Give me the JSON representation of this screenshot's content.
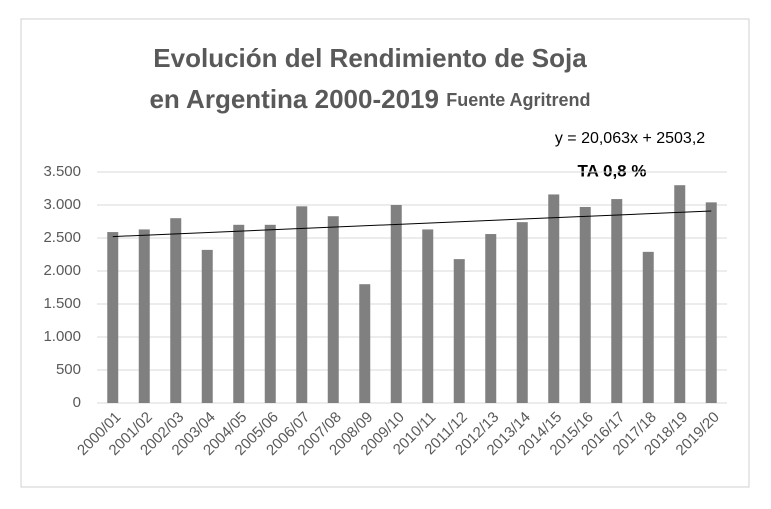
{
  "chart_data": {
    "type": "bar",
    "title": "Evolución del Rendimiento de Soja",
    "subtitle": "en Argentina 2000-2019",
    "source": "Fuente Agritrend",
    "annotations": [
      "y = 20,063x + 2503,2",
      "TA 0,8 %"
    ],
    "categories": [
      "2000/01",
      "2001/02",
      "2002/03",
      "2003/04",
      "2004/05",
      "2005/06",
      "2006/07",
      "2007/08",
      "2008/09",
      "2009/10",
      "2010/11",
      "2011/12",
      "2012/13",
      "2013/14",
      "2014/15",
      "2015/16",
      "2016/17",
      "2017/18",
      "2018/19",
      "2019/20"
    ],
    "values": [
      2590,
      2630,
      2800,
      2320,
      2700,
      2700,
      2980,
      2830,
      1800,
      3000,
      2630,
      2180,
      2560,
      2740,
      3160,
      2970,
      3090,
      2290,
      3300,
      3040
    ],
    "color": "#808080",
    "ylim": [
      0,
      3500
    ],
    "yticks": [
      0,
      500,
      {
        "value": 1000,
        "label": "1.000"
      },
      {
        "value": 1500,
        "label": "1.500"
      },
      {
        "value": 2000,
        "label": "2.000"
      },
      {
        "value": 2500,
        "label": "2.500"
      },
      {
        "value": 3000,
        "label": "3.000"
      },
      {
        "value": 3500,
        "label": "3.500"
      }
    ],
    "grid": true,
    "trendline": true
  }
}
